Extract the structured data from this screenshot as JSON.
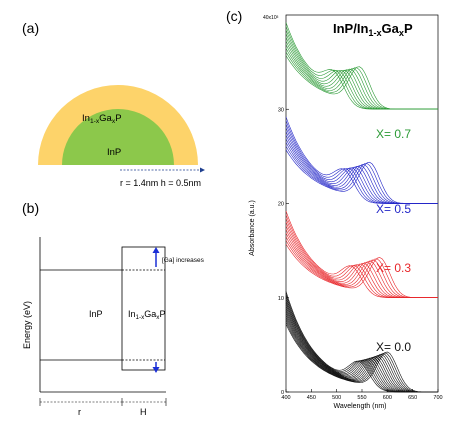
{
  "panel_a": {
    "label": "(a)",
    "shell_label": "In1-xGaxP",
    "core_label": "InP",
    "dims": "r = 1.4nm h = 0.5nm",
    "colors": {
      "shell": "#fdd36a",
      "core": "#8cc84b",
      "arrow": "#1f3f8f"
    }
  },
  "panel_b": {
    "label": "(b)",
    "ylabel": "Energy (eV)",
    "left_region": "InP",
    "right_region": "In1-xGaxP",
    "annotation": "[Ga] increases",
    "x_labels": [
      "r",
      "H"
    ],
    "colors": {
      "arrow": "#1b2fd6"
    }
  },
  "panel_c": {
    "label": "(c)"
  },
  "chart_data": {
    "type": "line",
    "title": "InP/In1-xGaxP",
    "xlabel": "Wavelength (nm)",
    "ylabel": "Absorbance (a.u.)",
    "y_exponent": "40x10³",
    "xlim": [
      400,
      700
    ],
    "ylim": [
      0,
      40
    ],
    "x_ticks": [
      400,
      450,
      500,
      550,
      600,
      650,
      700
    ],
    "y_ticks": [
      0,
      10,
      20,
      30
    ],
    "series_groups": [
      {
        "label": "X= 0.0",
        "color": "#111111",
        "offset": 0,
        "curves": 15,
        "peak_nm_min": 545,
        "peak_nm_max": 600
      },
      {
        "label": "X= 0.3",
        "color": "#e8262a",
        "offset": 10,
        "curves": 10,
        "peak_nm_min": 530,
        "peak_nm_max": 585
      },
      {
        "label": "X= 0.5",
        "color": "#2427c8",
        "offset": 20,
        "curves": 10,
        "peak_nm_min": 515,
        "peak_nm_max": 565
      },
      {
        "label": "X= 0.7",
        "color": "#2b9a35",
        "offset": 30,
        "curves": 10,
        "peak_nm_min": 495,
        "peak_nm_max": 545
      }
    ]
  }
}
